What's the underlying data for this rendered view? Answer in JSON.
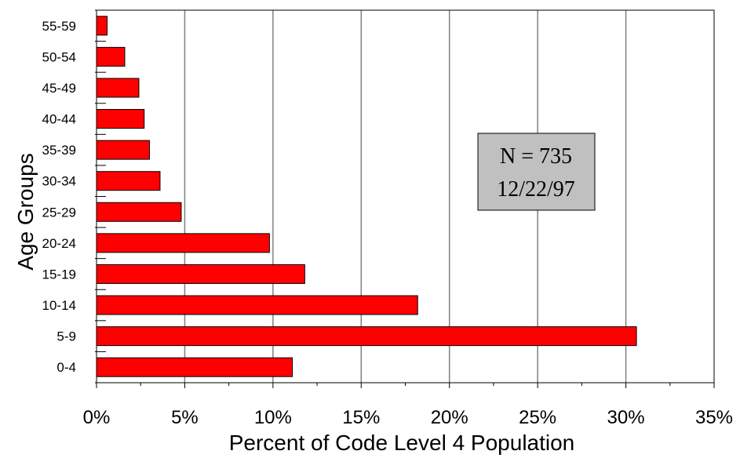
{
  "chart_data": {
    "type": "bar",
    "orientation": "horizontal",
    "categories": [
      "0-4",
      "5-9",
      "10-14",
      "15-19",
      "20-24",
      "25-29",
      "30-34",
      "35-39",
      "40-44",
      "45-49",
      "50-54",
      "55-59"
    ],
    "values": [
      11.1,
      30.6,
      18.2,
      11.8,
      9.8,
      4.8,
      3.6,
      3.0,
      2.7,
      2.4,
      1.6,
      0.6
    ],
    "xlabel": "Percent of Code Level 4 Population",
    "ylabel": "Age Groups",
    "xlim": [
      0,
      35
    ],
    "xticks": [
      0,
      5,
      10,
      15,
      20,
      25,
      30,
      35
    ],
    "x_tick_suffix": "%",
    "grid": "vertical",
    "bar_color": "#ff0000",
    "annotation": {
      "line1": "N = 735",
      "line2": "12/22/97",
      "background": "#c0c0c0"
    }
  }
}
